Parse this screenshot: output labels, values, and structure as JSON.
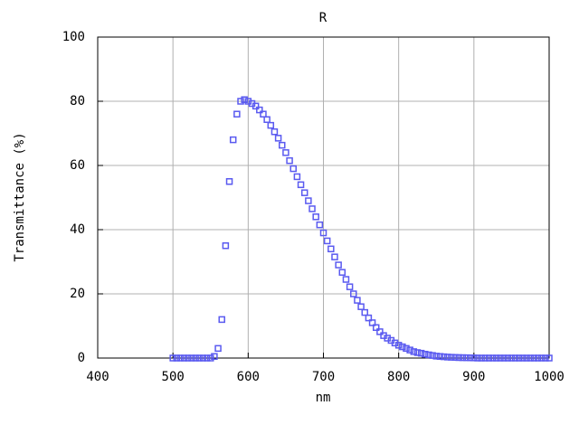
{
  "chart_data": {
    "type": "scatter",
    "title": "R",
    "x_label": "nm",
    "y_label": "Transmittance (%)",
    "xlim": [
      400,
      1000
    ],
    "xticks": [
      400,
      500,
      600,
      700,
      800,
      900,
      1000
    ],
    "ylim": [
      0,
      100
    ],
    "yticks": [
      0,
      20,
      40,
      60,
      80,
      100
    ],
    "grid": true,
    "series": [
      {
        "name": "R",
        "color": "#5a5af0",
        "x": [
          500,
          505,
          510,
          515,
          520,
          525,
          530,
          535,
          540,
          545,
          550,
          555,
          560,
          565,
          570,
          575,
          580,
          585,
          590,
          595,
          600,
          605,
          610,
          615,
          620,
          625,
          630,
          635,
          640,
          645,
          650,
          655,
          660,
          665,
          670,
          675,
          680,
          685,
          690,
          695,
          700,
          705,
          710,
          715,
          720,
          725,
          730,
          735,
          740,
          745,
          750,
          755,
          760,
          765,
          770,
          775,
          780,
          785,
          790,
          795,
          800,
          805,
          810,
          815,
          820,
          825,
          830,
          835,
          840,
          845,
          850,
          855,
          860,
          865,
          870,
          875,
          880,
          885,
          890,
          895,
          900,
          905,
          910,
          915,
          920,
          925,
          930,
          935,
          940,
          945,
          950,
          955,
          960,
          965,
          970,
          975,
          980,
          985,
          990,
          995,
          1000
        ],
        "values": [
          0,
          0,
          0,
          0,
          0,
          0,
          0,
          0,
          0,
          0,
          0,
          0.5,
          3,
          12,
          35,
          55,
          68,
          76,
          80,
          80.5,
          80,
          79.3,
          78.5,
          77.3,
          76,
          74.3,
          72.5,
          70.5,
          68.5,
          66.3,
          64,
          61.5,
          59,
          56.5,
          54,
          51.5,
          49,
          46.5,
          44,
          41.5,
          39,
          36.5,
          34,
          31.5,
          29,
          26.7,
          24.5,
          22.2,
          20,
          18,
          16,
          14.2,
          12.5,
          11,
          9.5,
          8.2,
          7,
          6.2,
          5.5,
          4.7,
          4,
          3.5,
          3,
          2.5,
          2,
          1.7,
          1.5,
          1.2,
          1,
          0.8,
          0.6,
          0.5,
          0.4,
          0.3,
          0.25,
          0.2,
          0.15,
          0.12,
          0.1,
          0.07,
          0.05,
          0,
          0,
          0,
          0,
          0,
          0,
          0,
          0,
          0,
          0,
          0,
          0,
          0,
          0,
          0,
          0,
          0,
          0,
          0,
          0
        ]
      }
    ]
  }
}
